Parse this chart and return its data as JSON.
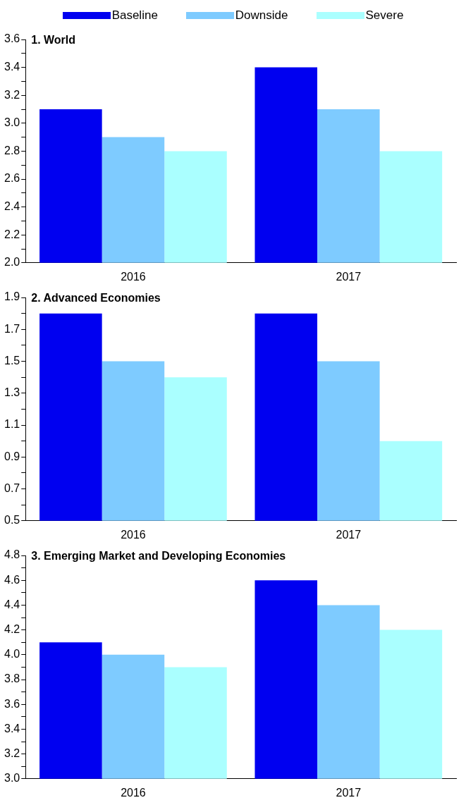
{
  "chart_data": [
    {
      "type": "bar",
      "title": "1. World",
      "categories": [
        "2016",
        "2017"
      ],
      "legend": "top",
      "grid": false,
      "series": [
        {
          "name": "Baseline",
          "color": "#0000f0",
          "values": [
            3.1,
            3.4
          ]
        },
        {
          "name": "Downside",
          "color": "#7ecbff",
          "values": [
            2.9,
            3.1
          ]
        },
        {
          "name": "Severe",
          "color": "#aaffff",
          "values": [
            2.8,
            2.8
          ]
        }
      ],
      "ylim": [
        2.0,
        3.6
      ],
      "yticks": [
        {
          "value": 2,
          "label": "2.0"
        },
        {
          "value": 2.1,
          "label": null
        },
        2.2,
        {
          "value": 2.3,
          "label": null
        },
        2.4,
        {
          "value": 2.5,
          "label": null
        },
        2.6,
        {
          "value": 2.7,
          "label": null
        },
        2.8,
        {
          "value": 2.9,
          "label": null
        },
        {
          "value": 3,
          "label": "3.0"
        },
        {
          "value": 3.1,
          "label": null
        },
        3.2,
        {
          "value": 3.3,
          "label": null
        },
        3.4,
        {
          "value": 3.5,
          "label": null
        },
        3.6
      ]
    },
    {
      "type": "bar",
      "title": "2. Advanced Economies",
      "categories": [
        "2016",
        "2017"
      ],
      "grid": false,
      "series": [
        {
          "color": "#0000f0",
          "values": [
            1.8,
            1.8
          ]
        },
        {
          "color": "#7ecbff",
          "values": [
            1.5,
            1.5
          ]
        },
        {
          "color": "#aaffff",
          "values": [
            1.4,
            1.0
          ]
        }
      ],
      "ylim": [
        0.5,
        1.9
      ],
      "yticks": [
        0.5,
        {
          "value": 0.6,
          "label": null
        },
        0.7,
        {
          "value": 0.8,
          "label": null
        },
        0.9,
        {
          "value": 1.0,
          "label": null
        },
        1.1,
        {
          "value": 1.2,
          "label": null
        },
        1.3,
        {
          "value": 1.4,
          "label": null
        },
        1.5,
        {
          "value": 1.6,
          "label": null
        },
        1.7,
        {
          "value": 1.8,
          "label": null
        },
        1.9
      ]
    },
    {
      "type": "bar",
      "title": "3. Emerging Market and Developing Economies",
      "categories": [
        "2016",
        "2017"
      ],
      "grid": false,
      "series": [
        {
          "color": "#0000f0",
          "values": [
            4.1,
            4.6
          ]
        },
        {
          "color": "#7ecbff",
          "values": [
            4.0,
            4.4
          ]
        },
        {
          "color": "#aaffff",
          "values": [
            3.9,
            4.2
          ]
        }
      ],
      "ylim": [
        3.0,
        4.8
      ],
      "yticks": [
        {
          "value": 3,
          "label": "3.0"
        },
        {
          "value": 3.1,
          "label": null
        },
        3.2,
        {
          "value": 3.3,
          "label": null
        },
        3.4,
        {
          "value": 3.5,
          "label": null
        },
        3.6,
        {
          "value": 3.7,
          "label": null
        },
        3.8,
        {
          "value": 3.9,
          "label": null
        },
        {
          "value": 4,
          "label": "4.0"
        },
        {
          "value": 4.1,
          "label": null
        },
        4.2,
        {
          "value": 4.3,
          "label": null
        },
        4.4,
        {
          "value": 4.5,
          "label": null
        },
        4.6,
        {
          "value": 4.7,
          "label": null
        },
        4.8
      ]
    }
  ]
}
